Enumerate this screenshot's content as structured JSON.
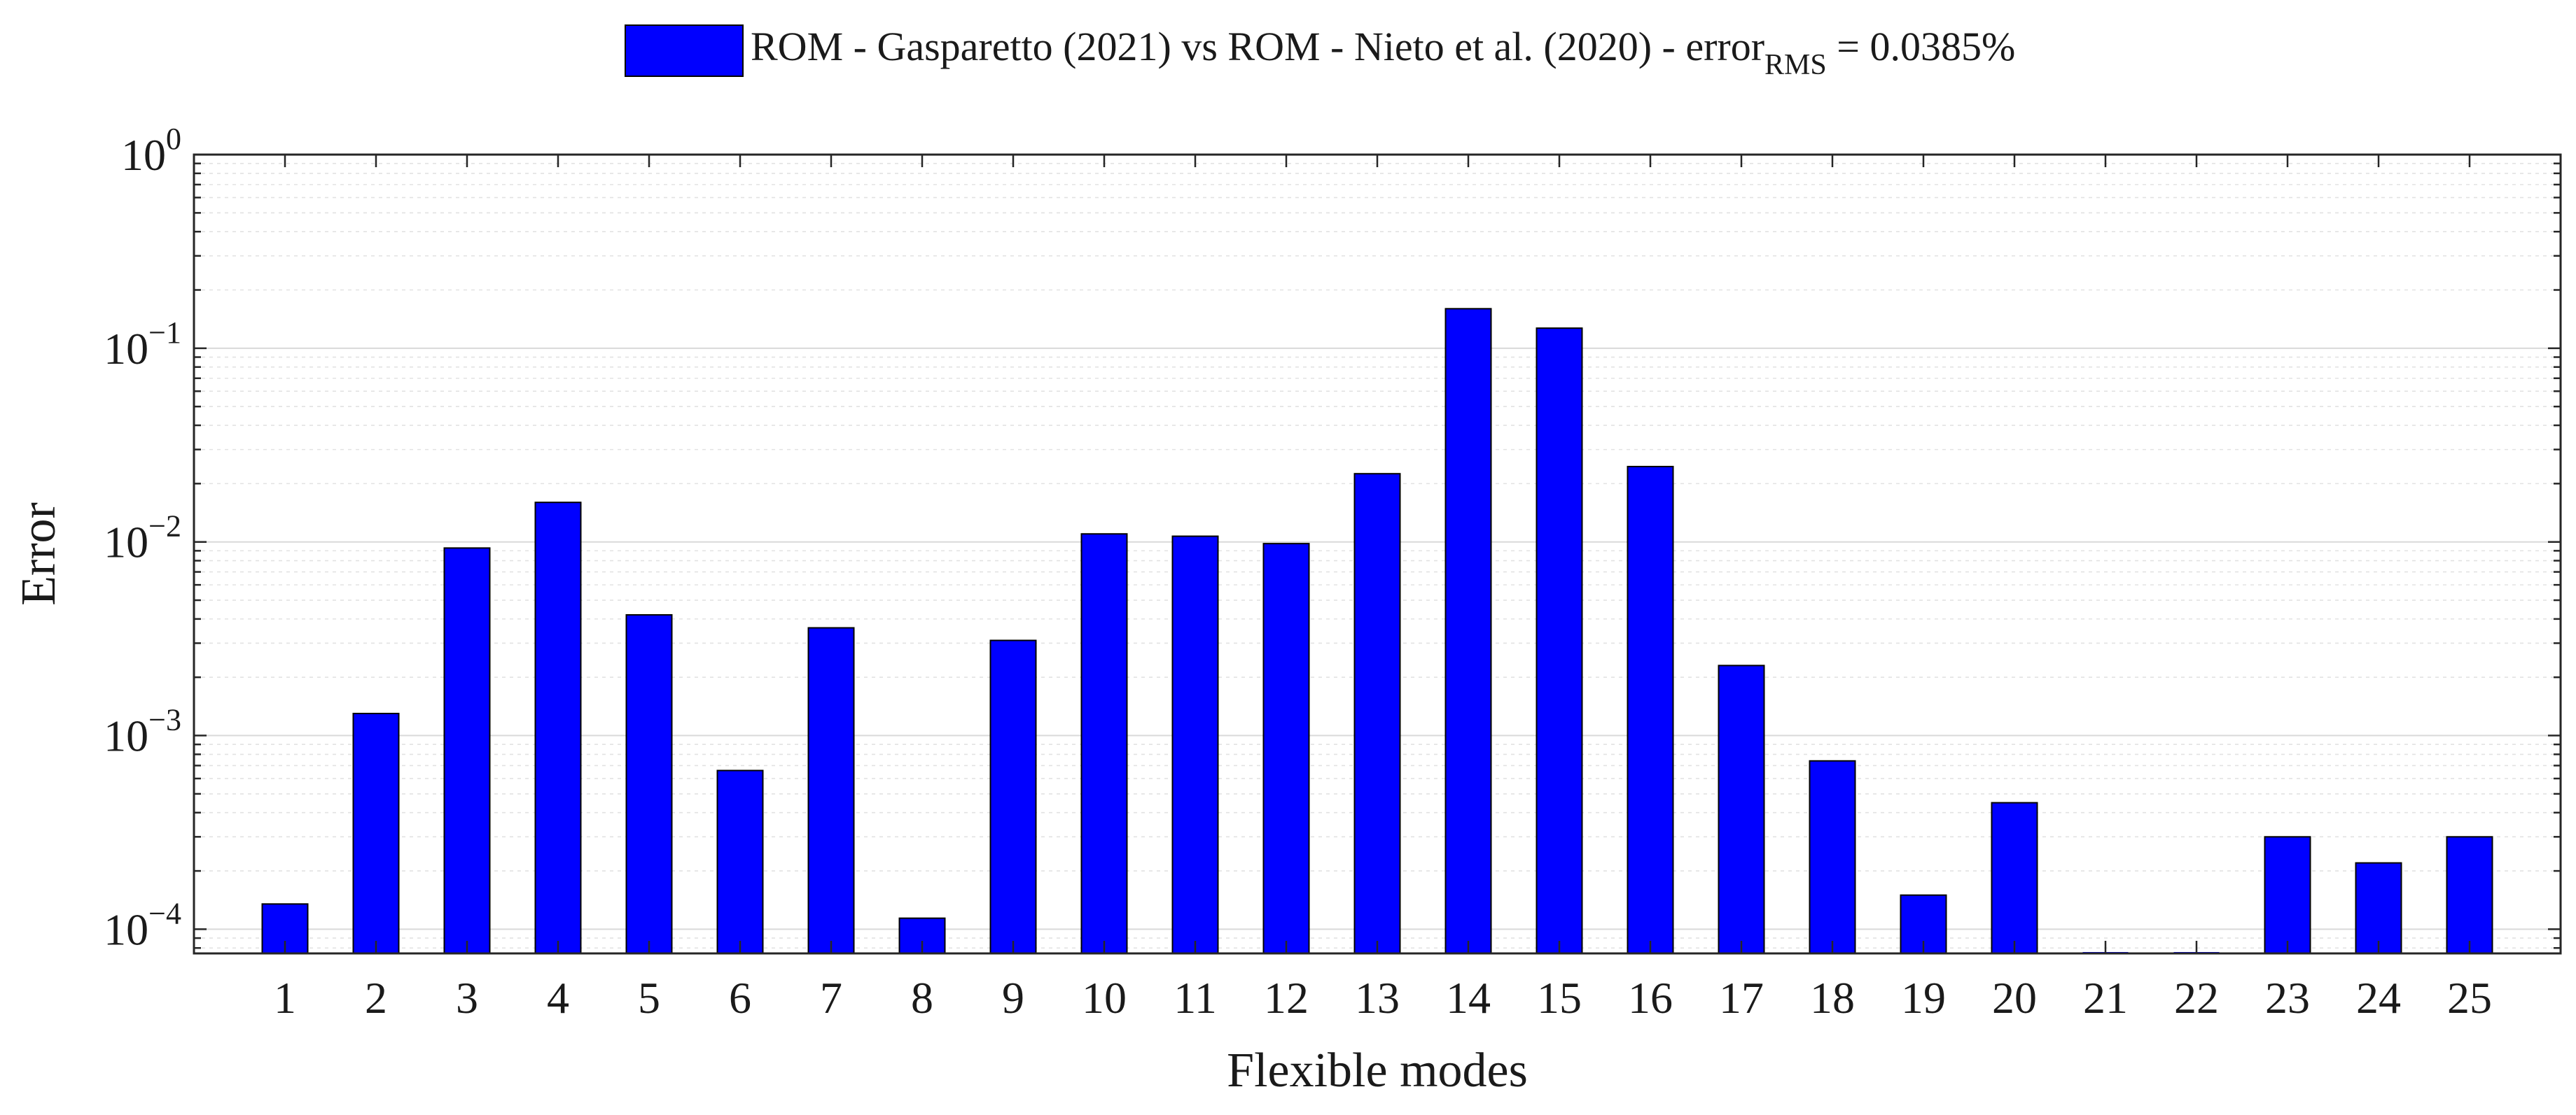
{
  "legend": {
    "entry_main": "ROM - Gasparetto (2021) vs ROM - Nieto et al. (2020) - error",
    "entry_sub": "RMS",
    "entry_tail": " = 0.0385%"
  },
  "chart_data": {
    "type": "bar",
    "title": "",
    "xlabel": "Flexible modes",
    "ylabel": "Error",
    "yscale": "log",
    "ylim": [
      7.5e-05,
      1
    ],
    "yticks": [
      {
        "base": "10",
        "exp": "−4",
        "value": 0.0001
      },
      {
        "base": "10",
        "exp": "−3",
        "value": 0.001
      },
      {
        "base": "10",
        "exp": "−2",
        "value": 0.01
      },
      {
        "base": "10",
        "exp": "−1",
        "value": 0.1
      },
      {
        "base": "10",
        "exp": "0",
        "value": 1
      }
    ],
    "grid": true,
    "legend_position": "top-center",
    "bar_color": "#0000ff",
    "categories": [
      "1",
      "2",
      "3",
      "4",
      "5",
      "6",
      "7",
      "8",
      "9",
      "10",
      "11",
      "12",
      "13",
      "14",
      "15",
      "16",
      "17",
      "18",
      "19",
      "20",
      "21",
      "22",
      "23",
      "24",
      "25"
    ],
    "series": [
      {
        "name": "ROM - Gasparetto (2021) vs ROM - Nieto et al. (2020) - errorRMS = 0.0385%",
        "values": [
          0.000135,
          0.0013,
          0.0093,
          0.016,
          0.0042,
          0.00066,
          0.0036,
          0.000114,
          0.0031,
          0.011,
          0.0107,
          0.0098,
          0.0225,
          0.16,
          0.127,
          0.0245,
          0.0023,
          0.00074,
          0.00015,
          0.00045,
          7.4e-05,
          7.4e-05,
          0.0003,
          0.00022,
          0.0003
        ]
      }
    ]
  }
}
